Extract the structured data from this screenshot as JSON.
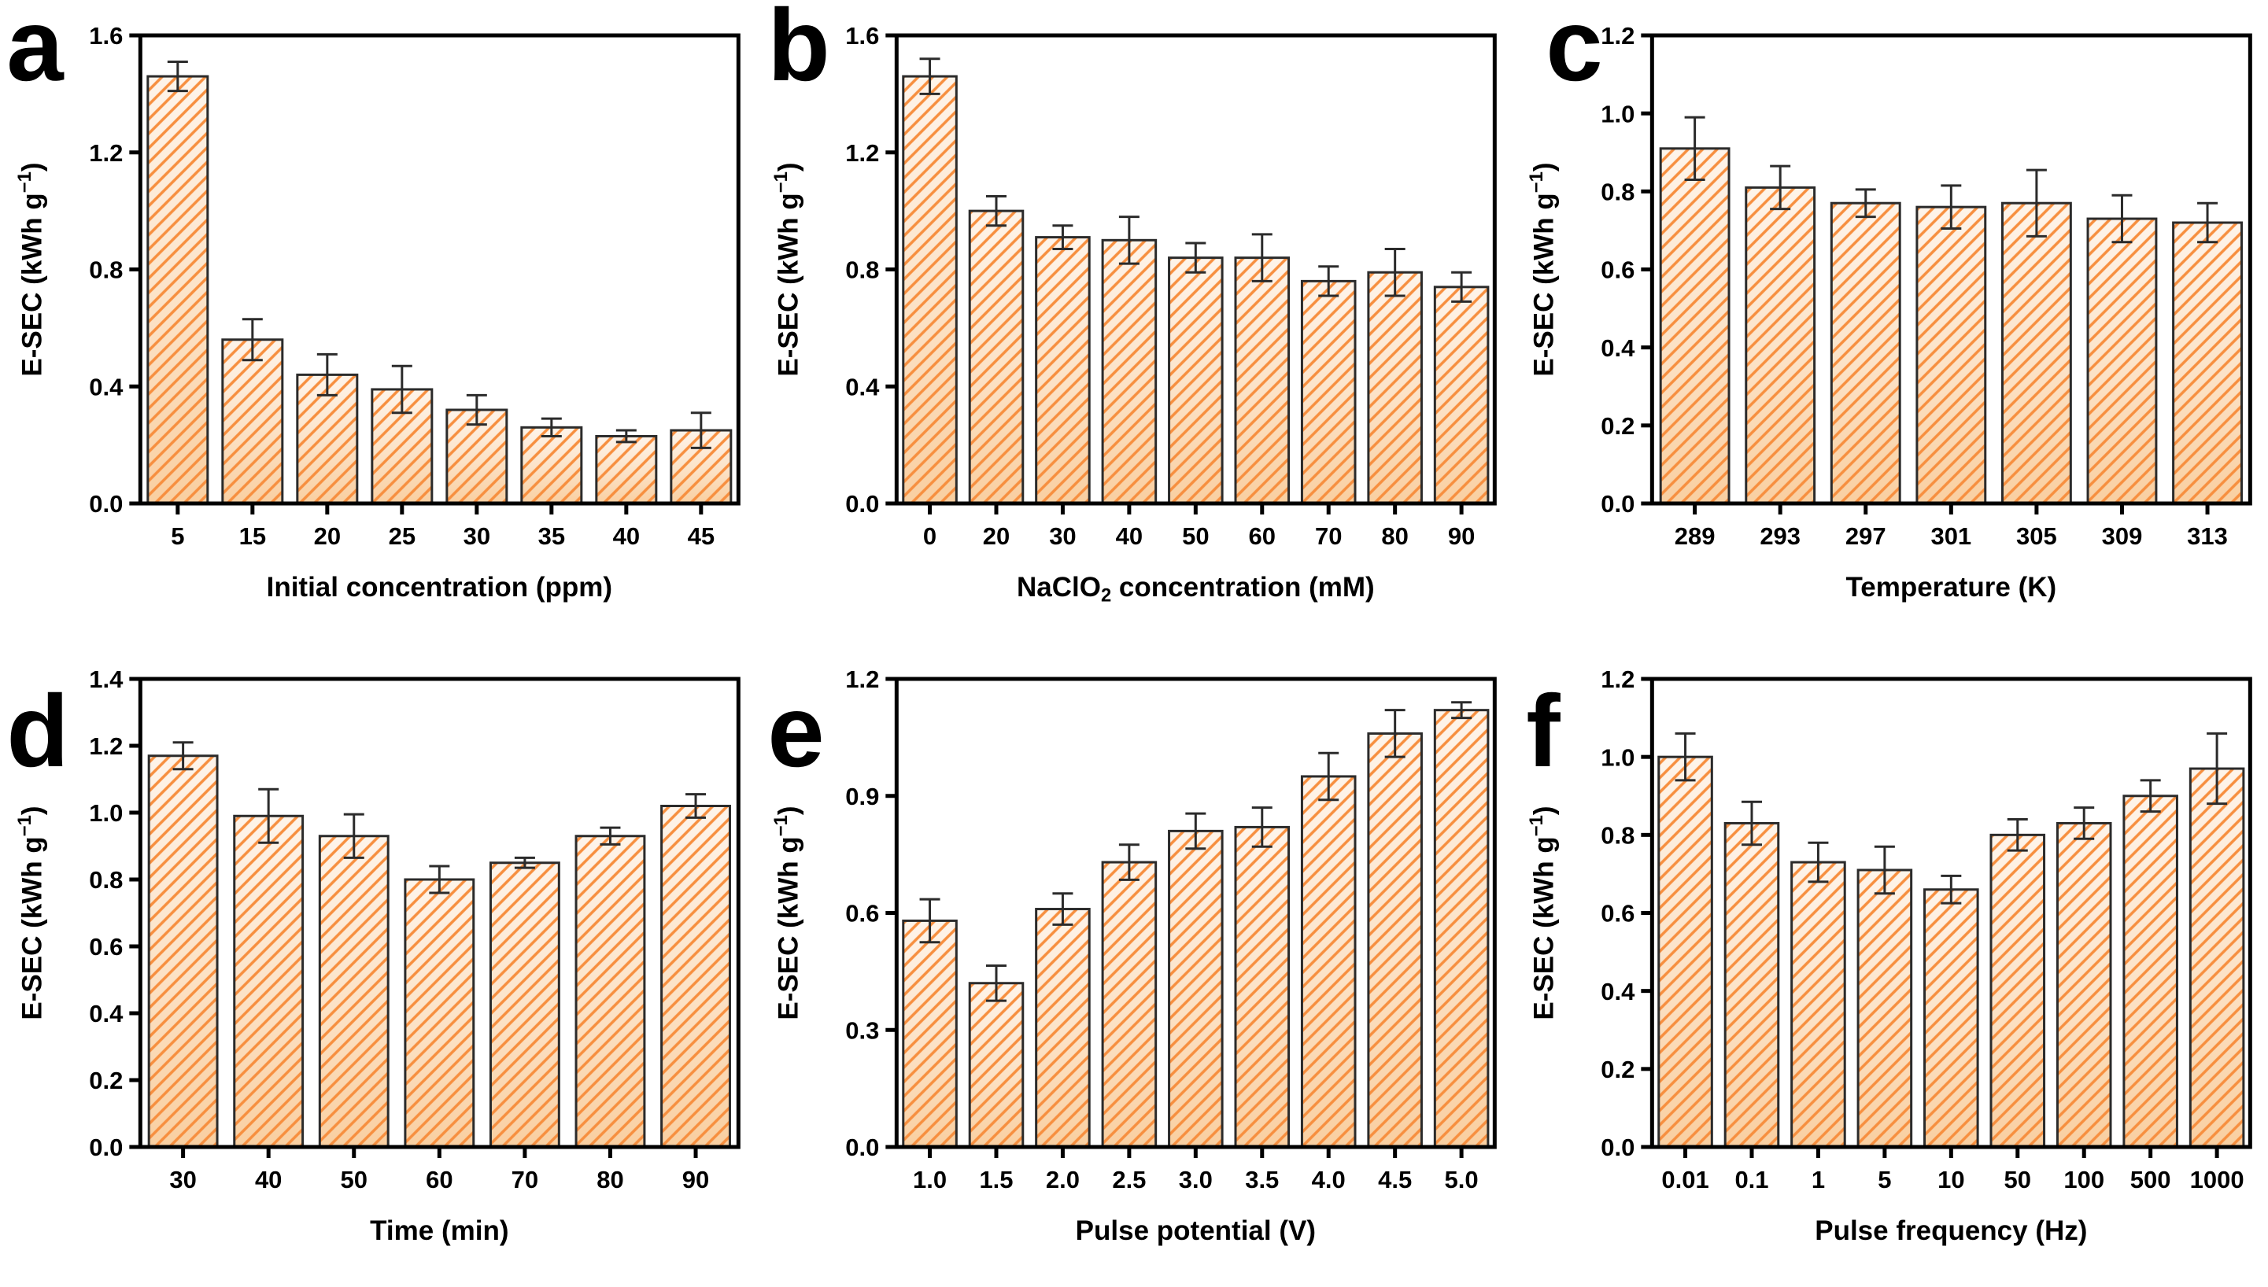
{
  "figure": {
    "background": "#ffffff",
    "colors": {
      "bar_fill_top": "#FEF4EA",
      "bar_fill_bottom": "#F9CFA1",
      "hatch": "#F78F3F",
      "bar_outline": "#2B2B2B",
      "axis": "#000000",
      "error_bar": "#2B2B2B",
      "text": "#000000"
    }
  },
  "chart_data": [
    {
      "type": "bar",
      "panel_label": "a",
      "xlabel": "Initial concentration (ppm)",
      "ylabel": "E-SEC (kWh g⁻¹)",
      "categories": [
        "5",
        "15",
        "20",
        "25",
        "30",
        "35",
        "40",
        "45"
      ],
      "values": [
        1.46,
        0.56,
        0.44,
        0.39,
        0.32,
        0.26,
        0.23,
        0.25
      ],
      "errors": [
        0.05,
        0.07,
        0.07,
        0.08,
        0.05,
        0.03,
        0.02,
        0.06
      ],
      "ylim": [
        0,
        1.6
      ],
      "yticks": [
        "0.0",
        "0.4",
        "0.8",
        "1.2",
        "1.6"
      ],
      "grid": false,
      "legend": null
    },
    {
      "type": "bar",
      "panel_label": "b",
      "xlabel": "NaClO₂ concentration (mM)",
      "ylabel": "E-SEC (kWh g⁻¹)",
      "categories": [
        "0",
        "20",
        "30",
        "40",
        "50",
        "60",
        "70",
        "80",
        "90"
      ],
      "values": [
        1.46,
        1.0,
        0.91,
        0.9,
        0.84,
        0.84,
        0.76,
        0.79,
        0.74
      ],
      "errors": [
        0.06,
        0.05,
        0.04,
        0.08,
        0.05,
        0.08,
        0.05,
        0.08,
        0.05
      ],
      "ylim": [
        0,
        1.6
      ],
      "yticks": [
        "0.0",
        "0.4",
        "0.8",
        "1.2",
        "1.6"
      ],
      "grid": false,
      "legend": null
    },
    {
      "type": "bar",
      "panel_label": "c",
      "xlabel": "Temperature (K)",
      "ylabel": "E-SEC (kWh g⁻¹)",
      "categories": [
        "289",
        "293",
        "297",
        "301",
        "305",
        "309",
        "313"
      ],
      "values": [
        0.91,
        0.81,
        0.77,
        0.76,
        0.77,
        0.73,
        0.72
      ],
      "errors": [
        0.08,
        0.055,
        0.035,
        0.055,
        0.085,
        0.06,
        0.05
      ],
      "ylim": [
        0,
        1.2
      ],
      "yticks": [
        "0.0",
        "0.2",
        "0.4",
        "0.6",
        "0.8",
        "1.0",
        "1.2"
      ],
      "grid": false,
      "legend": null
    },
    {
      "type": "bar",
      "panel_label": "d",
      "xlabel": "Time (min)",
      "ylabel": "E-SEC (kWh g⁻¹)",
      "categories": [
        "30",
        "40",
        "50",
        "60",
        "70",
        "80",
        "90"
      ],
      "values": [
        1.17,
        0.99,
        0.93,
        0.8,
        0.85,
        0.93,
        1.02
      ],
      "errors": [
        0.04,
        0.08,
        0.065,
        0.04,
        0.015,
        0.025,
        0.035
      ],
      "ylim": [
        0,
        1.4
      ],
      "yticks": [
        "0.0",
        "0.2",
        "0.4",
        "0.6",
        "0.8",
        "1.0",
        "1.2",
        "1.4"
      ],
      "grid": false,
      "legend": null
    },
    {
      "type": "bar",
      "panel_label": "e",
      "xlabel": "Pulse potential (V)",
      "ylabel": "E-SEC (kWh g⁻¹)",
      "categories": [
        "1.0",
        "1.5",
        "2.0",
        "2.5",
        "3.0",
        "3.5",
        "4.0",
        "4.5",
        "5.0"
      ],
      "values": [
        0.58,
        0.42,
        0.61,
        0.73,
        0.81,
        0.82,
        0.95,
        1.06,
        1.12
      ],
      "errors": [
        0.055,
        0.045,
        0.04,
        0.045,
        0.045,
        0.05,
        0.06,
        0.06,
        0.02
      ],
      "ylim": [
        0,
        1.2
      ],
      "yticks": [
        "0.0",
        "0.3",
        "0.6",
        "0.9",
        "1.2"
      ],
      "grid": false,
      "legend": null
    },
    {
      "type": "bar",
      "panel_label": "f",
      "xlabel": "Pulse frequency (Hz)",
      "ylabel": "E-SEC (kWh g⁻¹)",
      "categories": [
        "0.01",
        "0.1",
        "1",
        "5",
        "10",
        "50",
        "100",
        "500",
        "1000"
      ],
      "values": [
        1.0,
        0.83,
        0.73,
        0.71,
        0.66,
        0.8,
        0.83,
        0.9,
        0.97
      ],
      "errors": [
        0.06,
        0.055,
        0.05,
        0.06,
        0.035,
        0.04,
        0.04,
        0.04,
        0.09
      ],
      "ylim": [
        0,
        1.2
      ],
      "yticks": [
        "0.0",
        "0.2",
        "0.4",
        "0.6",
        "0.8",
        "1.0",
        "1.2"
      ],
      "grid": false,
      "legend": null
    }
  ]
}
